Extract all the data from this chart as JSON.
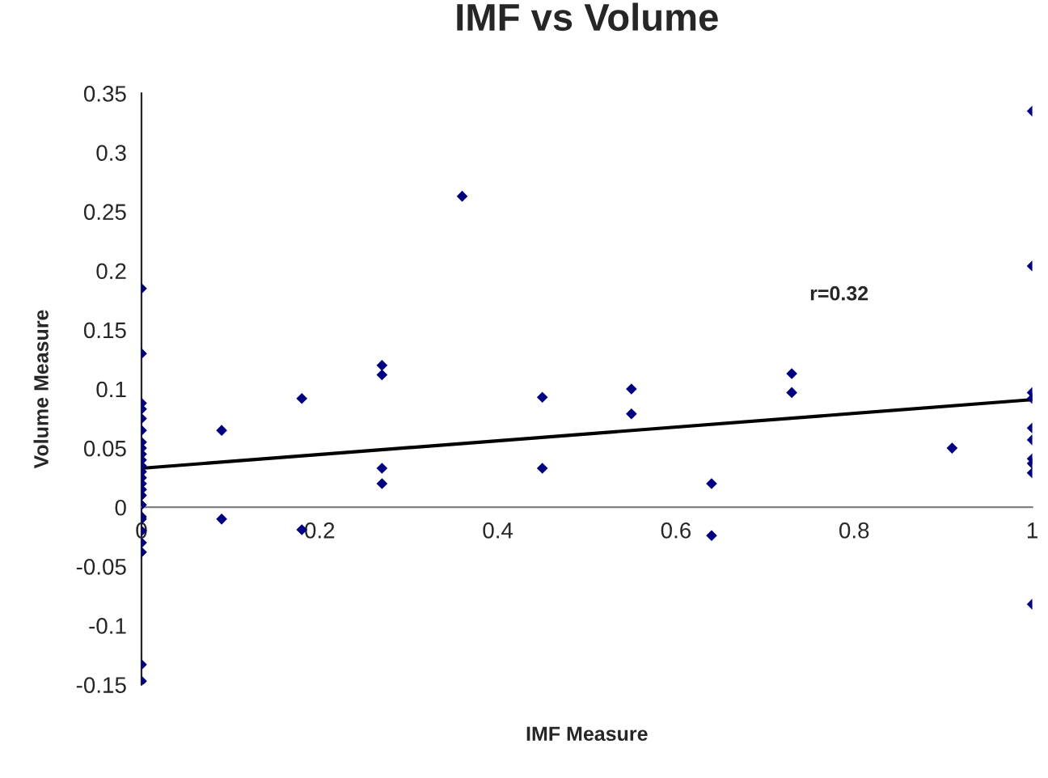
{
  "chart_data": {
    "type": "scatter",
    "title": "IMF vs Volume",
    "xlabel": "IMF Measure",
    "ylabel": "Volume Measure",
    "xlim": [
      0,
      1
    ],
    "xticks": [
      0,
      0.2,
      0.4,
      0.6,
      0.8,
      1
    ],
    "ylim": [
      -0.15,
      0.35
    ],
    "yticks": [
      -0.15,
      -0.1,
      -0.05,
      0,
      0.05,
      0.1,
      0.15,
      0.2,
      0.25,
      0.3,
      0.35
    ],
    "grid": false,
    "legend": false,
    "series": [
      {
        "type": "scatter",
        "color": "#000080",
        "marker": "diamond",
        "x": [
          0,
          0,
          0,
          0,
          0,
          0,
          0,
          0,
          0,
          0,
          0,
          0,
          0,
          0,
          0,
          0,
          0,
          0,
          0,
          0,
          0,
          0,
          0,
          0,
          0.09,
          0.09,
          0.18,
          0.18,
          0.27,
          0.27,
          0.27,
          0.27,
          0.36,
          0.45,
          0.45,
          0.55,
          0.55,
          0.64,
          0.64,
          0.73,
          0.73,
          0.91,
          1,
          1,
          1,
          1,
          1,
          1,
          1,
          1,
          1,
          1
        ],
        "values": [
          0.185,
          0.13,
          0.088,
          0.083,
          0.075,
          0.065,
          0.055,
          0.05,
          0.045,
          0.04,
          0.035,
          0.03,
          0.025,
          0.02,
          0.015,
          0.01,
          0.002,
          -0.008,
          -0.01,
          -0.02,
          -0.03,
          -0.038,
          -0.133,
          -0.147,
          0.065,
          -0.01,
          0.092,
          -0.019,
          0.12,
          0.112,
          0.033,
          0.02,
          0.263,
          0.093,
          0.033,
          0.1,
          0.079,
          0.02,
          -0.024,
          0.113,
          0.097,
          0.05,
          0.335,
          0.204,
          0.097,
          0.092,
          0.067,
          0.057,
          0.041,
          0.037,
          0.029,
          -0.082
        ]
      },
      {
        "type": "line",
        "color": "#000000",
        "marker": "none",
        "line_style": "solid",
        "x": [
          0,
          1
        ],
        "values": [
          0.033,
          0.091
        ]
      }
    ],
    "annotations": [
      "r=0.32"
    ]
  }
}
